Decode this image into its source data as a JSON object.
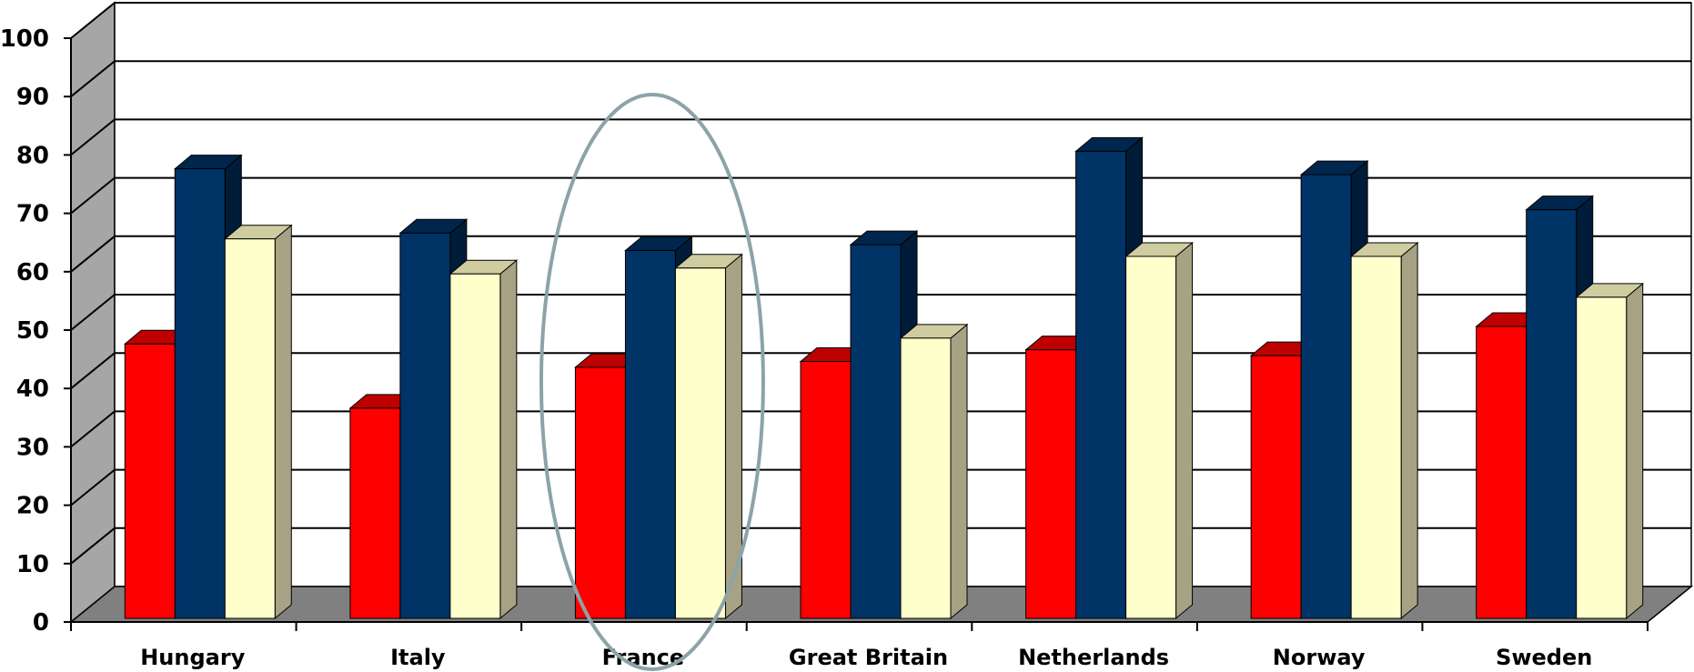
{
  "chart_data": {
    "type": "bar",
    "title": "",
    "xlabel": "",
    "ylabel": "",
    "ylim": [
      0,
      100
    ],
    "yticks": [
      0,
      10,
      20,
      30,
      40,
      50,
      60,
      70,
      80,
      90,
      100
    ],
    "grid": true,
    "categories": [
      "Hungary",
      "Italy",
      "France",
      "Great Britain",
      "Netherlands",
      "Norway",
      "Sweden"
    ],
    "series": [
      {
        "values": [
          47,
          36,
          43,
          44,
          46,
          45,
          50
        ],
        "color": "#ff0000"
      },
      {
        "values": [
          77,
          66,
          63,
          64,
          80,
          76,
          70
        ],
        "color": "#003366"
      },
      {
        "values": [
          65,
          59,
          60,
          48,
          62,
          62,
          55
        ],
        "color": "#ffffcc"
      }
    ],
    "highlight": {
      "category": "France",
      "shape": "ellipse",
      "color": "#8ca3a8"
    }
  }
}
